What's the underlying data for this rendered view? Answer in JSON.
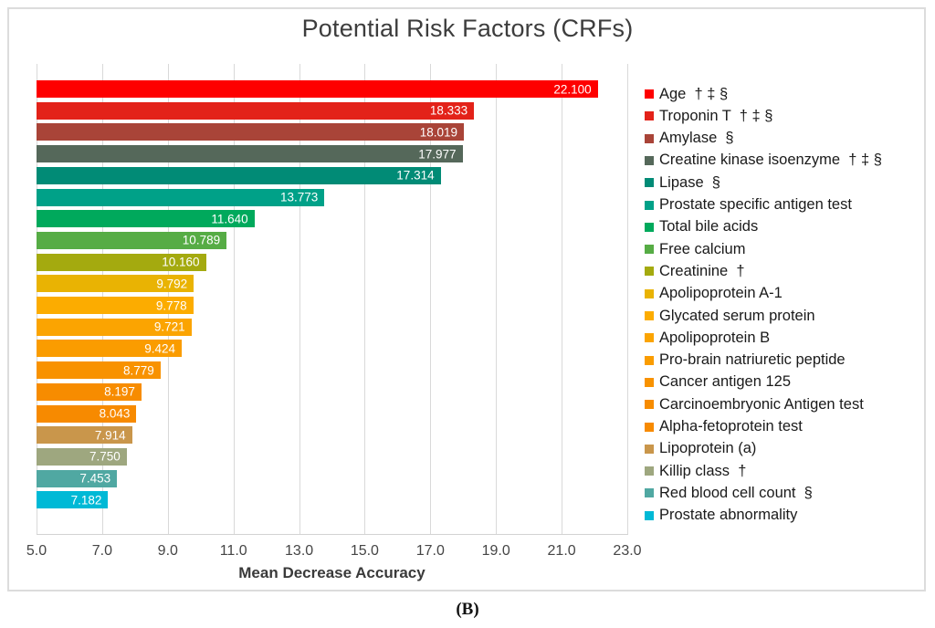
{
  "figure": {
    "title": "Potential Risk Factors (CRFs)",
    "caption": "(B)"
  },
  "chart_data": {
    "type": "bar",
    "orientation": "horizontal",
    "title": "Potential Risk Factors (CRFs)",
    "xlabel": "Mean Decrease Accuracy",
    "ylabel": "",
    "xlim": [
      5.0,
      23.0
    ],
    "xtick_labels": [
      "5.0",
      "7.0",
      "9.0",
      "11.0",
      "13.0",
      "15.0",
      "17.0",
      "19.0",
      "21.0",
      "23.0"
    ],
    "grid": true,
    "legend_position": "right",
    "bars": [
      {
        "label": "Age  † ‡ §",
        "value": 22.1,
        "value_label": "22.100",
        "color": "#FE0000"
      },
      {
        "label": "Troponin T  † ‡ §",
        "value": 18.333,
        "value_label": "18.333",
        "color": "#E32219"
      },
      {
        "label": "Amylase  §",
        "value": 18.019,
        "value_label": "18.019",
        "color": "#A94438"
      },
      {
        "label": "Creatine kinase isoenzyme  † ‡ §",
        "value": 17.977,
        "value_label": "17.977",
        "color": "#55685A"
      },
      {
        "label": "Lipase  §",
        "value": 17.314,
        "value_label": "17.314",
        "color": "#018B76"
      },
      {
        "label": "Prostate specific antigen test",
        "value": 13.773,
        "value_label": "13.773",
        "color": "#00A188"
      },
      {
        "label": "Total bile acids",
        "value": 11.64,
        "value_label": "11.640",
        "color": "#00A95C"
      },
      {
        "label": "Free calcium",
        "value": 10.789,
        "value_label": "10.789",
        "color": "#56AC45"
      },
      {
        "label": "Creatinine  †",
        "value": 10.16,
        "value_label": "10.160",
        "color": "#A4AA0F"
      },
      {
        "label": "Apolipoprotein A-1",
        "value": 9.792,
        "value_label": "9.792",
        "color": "#E9B303"
      },
      {
        "label": "Glycated serum protein",
        "value": 9.778,
        "value_label": "9.778",
        "color": "#FCAC00"
      },
      {
        "label": "Apolipoprotein B",
        "value": 9.721,
        "value_label": "9.721",
        "color": "#FBA401"
      },
      {
        "label": "Pro-brain natriuretic peptide",
        "value": 9.424,
        "value_label": "9.424",
        "color": "#FA9C00"
      },
      {
        "label": "Cancer antigen 125",
        "value": 8.779,
        "value_label": "8.779",
        "color": "#F89200"
      },
      {
        "label": "Carcinoembryonic Antigen test",
        "value": 8.197,
        "value_label": "8.197",
        "color": "#F78C00"
      },
      {
        "label": "Alpha-fetoprotein test",
        "value": 8.043,
        "value_label": "8.043",
        "color": "#F78A00"
      },
      {
        "label": "Lipoprotein (a)",
        "value": 7.914,
        "value_label": "7.914",
        "color": "#C9964B"
      },
      {
        "label": "Killip class  †",
        "value": 7.75,
        "value_label": "7.750",
        "color": "#9EA77F"
      },
      {
        "label": "Red blood cell count  §",
        "value": 7.453,
        "value_label": "7.453",
        "color": "#50A8A2"
      },
      {
        "label": "Prostate abnormality",
        "value": 7.182,
        "value_label": "7.182",
        "color": "#00B9D6"
      }
    ]
  },
  "colors": {
    "grid": "#D9D9D9",
    "frame_border": "#DCDCDC",
    "title_text": "#3D3D3D",
    "tick_text": "#454545",
    "bar_value_text": "#FFFFFF",
    "legend_text": "#1A1A1A"
  }
}
